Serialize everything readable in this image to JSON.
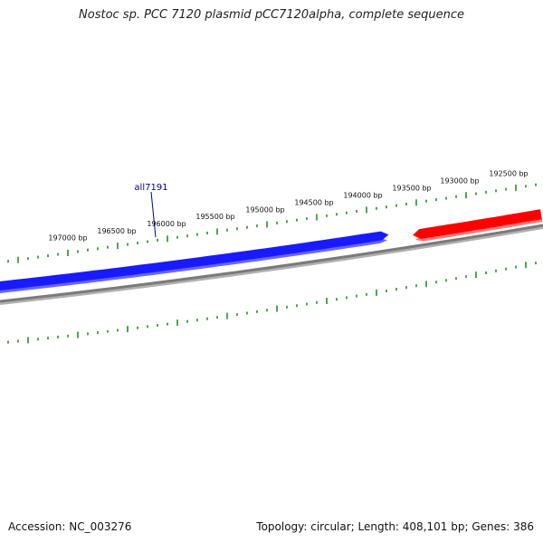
{
  "title": "Nostoc sp. PCC 7120 plasmid pCC7120alpha, complete sequence",
  "accession_text": "Accession: NC_003276",
  "summary_text": "Topology: circular; Length: 408,101 bp; Genes: 386",
  "colors": {
    "backbone": "#7a7a7a",
    "forward_gene": "#1a1aff",
    "reverse_gene": "#ff0000",
    "ticks": "#2a8a2a",
    "gene_label": "#00008b"
  },
  "ruler": {
    "labels": [
      "197000 bp",
      "196500 bp",
      "196000 bp",
      "195500 bp",
      "195000 bp",
      "194500 bp",
      "194000 bp",
      "193500 bp",
      "193000 bp",
      "192500 bp"
    ]
  },
  "genes": [
    {
      "strand": "forward",
      "direction": "right"
    },
    {
      "strand": "reverse",
      "direction": "left"
    }
  ],
  "gene_labels": [
    {
      "text": "all7191"
    }
  ]
}
